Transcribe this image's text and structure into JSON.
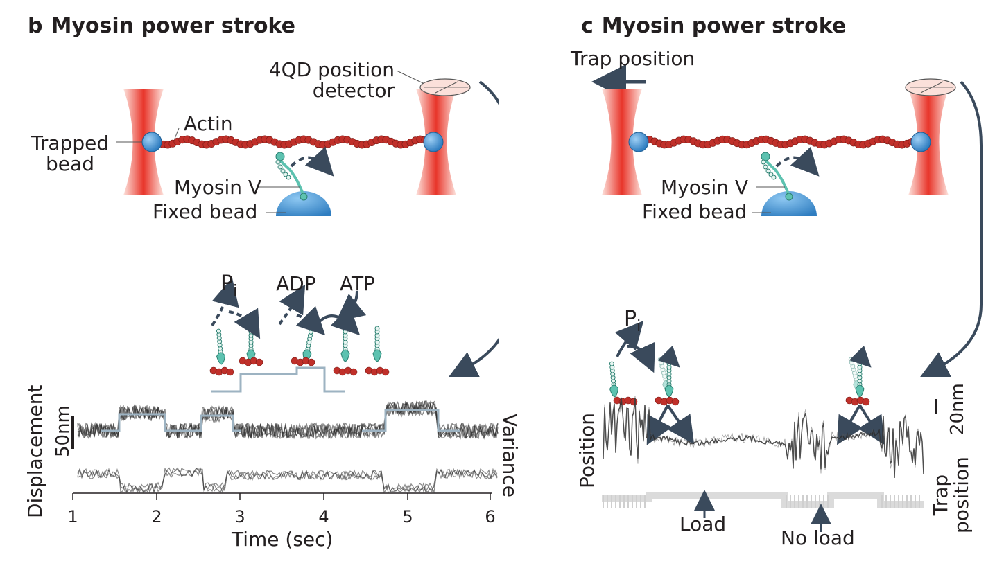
{
  "panel_b": {
    "letter": "b",
    "title": "Myosin power stroke",
    "labels": {
      "detector": "4QD position\ndetector",
      "actin": "Actin",
      "trapped_bead": "Trapped\nbead",
      "myosin": "Myosin V",
      "fixed_bead": "Fixed bead",
      "pi": "P",
      "pi_sub": "i",
      "adp": "ADP",
      "atp": "ATP",
      "scale": "50nm",
      "ylabel": "Displacement",
      "variance": "Variance",
      "xlabel": "Time (sec)"
    },
    "x_ticks": [
      "1",
      "2",
      "3",
      "4",
      "5",
      "6"
    ]
  },
  "panel_c": {
    "letter": "c",
    "title": "Myosin power stroke",
    "labels": {
      "trap_position_top": "Trap position",
      "myosin": "Myosin V",
      "fixed_bead": "Fixed bead",
      "pi": "P",
      "pi_sub": "i",
      "scale": "20nm",
      "position": "Position",
      "trap_position_axis": "Trap\nposition",
      "load": "Load",
      "no_load": "No load"
    }
  },
  "colors": {
    "laser_red": "#e8352a",
    "actin_red": "#c0302a",
    "bead_blue": "#3d8fd1",
    "myosin_teal": "#5dc2b0",
    "arrow_slate": "#3a4a5c",
    "trace_dark": "#2a2a2a",
    "fit_line": "#9db3c2"
  }
}
